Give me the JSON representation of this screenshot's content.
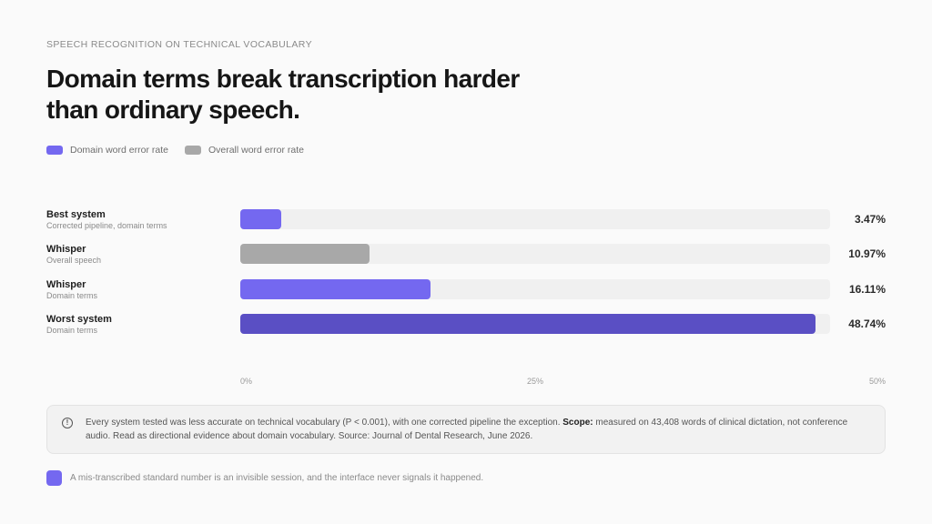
{
  "eyebrow": "SPEECH RECOGNITION ON TECHNICAL VOCABULARY",
  "title": "Domain terms break transcription harder than ordinary speech.",
  "legend": [
    {
      "label": "Domain word error rate",
      "color": "#7468f0"
    },
    {
      "label": "Overall word error rate",
      "color": "#a8a8a8"
    }
  ],
  "chart_data": {
    "type": "bar",
    "orientation": "horizontal",
    "xlim": [
      0,
      50
    ],
    "ticks": [
      "0%",
      "25%",
      "50%"
    ],
    "tick_values": [
      0,
      25,
      50
    ],
    "rows": [
      {
        "label": "Best system",
        "sublabel": "Corrected pipeline, domain terms",
        "value": 3.47,
        "value_label": "3.47%",
        "series": "Domain word error rate",
        "color": "#7468f0"
      },
      {
        "label": "Whisper",
        "sublabel": "Overall speech",
        "value": 10.97,
        "value_label": "10.97%",
        "series": "Overall word error rate",
        "color": "#a8a8a8"
      },
      {
        "label": "Whisper",
        "sublabel": "Domain terms",
        "value": 16.11,
        "value_label": "16.11%",
        "series": "Domain word error rate",
        "color": "#7468f0"
      },
      {
        "label": "Worst system",
        "sublabel": "Domain terms",
        "value": 48.74,
        "value_label": "48.74%",
        "series": "Domain word error rate",
        "color": "#5a4fc4"
      }
    ]
  },
  "note": {
    "icon": "info-icon",
    "text_before": "Every system tested was less accurate on technical vocabulary (P < 0.001), with one corrected pipeline the exception. ",
    "scope_label": "Scope:",
    "text_after": " measured on 43,408 words of clinical dictation, not conference audio. Read as directional evidence about domain vocabulary. Source: Journal of Dental Research, June 2026."
  },
  "footer": {
    "text": "A mis-transcribed standard number is an invisible session, and the interface never signals it happened.",
    "color": "#7468f0"
  }
}
